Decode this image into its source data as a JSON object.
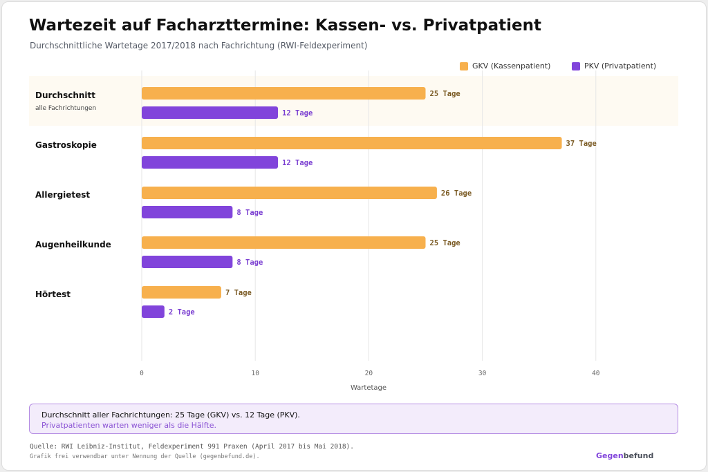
{
  "title": "Wartezeit auf Facharzttermine: Kassen- vs. Privatpatient",
  "subtitle": "Durchschnittliche Wartetage 2017/2018 nach Fachrichtung (RWI-Feldexperiment)",
  "colors": {
    "gkv": "#f7b04d",
    "pkv": "#8144db",
    "gkv_text": "#7a5a23",
    "pkv_text": "#7a3ed1",
    "highlight": "#fefaf2",
    "grid": "#e6e6e6"
  },
  "chart_data": {
    "type": "bar",
    "orientation": "horizontal",
    "categories": [
      "Durchschnitt",
      "Gastroskopie",
      "Allergietest",
      "Augenheilkunde",
      "Hörtest"
    ],
    "category_sublabels": [
      "alle Fachrichtungen",
      "",
      "",
      "",
      ""
    ],
    "series": [
      {
        "name": "GKV (Kassenpatient)",
        "values": [
          25,
          37,
          26,
          25,
          7
        ],
        "value_labels": [
          "25 Tage",
          "37 Tage",
          "26 Tage",
          "25 Tage",
          "7 Tage"
        ]
      },
      {
        "name": "PKV (Privatpatient)",
        "values": [
          12,
          12,
          8,
          8,
          2
        ],
        "value_labels": [
          "12 Tage",
          "12 Tage",
          "8 Tage",
          "8 Tage",
          "2 Tage"
        ]
      }
    ],
    "xlabel": "Wartetage",
    "xlim": [
      0,
      47
    ],
    "xticks": [
      0,
      10,
      20,
      30,
      40
    ],
    "xtick_labels": [
      "0",
      "10",
      "20",
      "30",
      "40"
    ],
    "grid": true,
    "legend_position": "top-right",
    "highlighted_category": "Durchschnitt"
  },
  "note": {
    "line1": "Durchschnitt aller Fachrichtungen: 25 Tage (GKV) vs. 12 Tage (PKV).",
    "line2": "Privatpatienten warten weniger als die Hälfte."
  },
  "source": "Quelle: RWI Leibniz-Institut, Feldexperiment 991 Praxen (April 2017 bis Mai 2018).",
  "license": "Grafik frei verwendbar unter Nennung der Quelle (gegenbefund.de).",
  "brand": {
    "part1": "Gegen",
    "part2": "befund",
    "color1": "#8144db",
    "color2": "#4a4f5a"
  }
}
